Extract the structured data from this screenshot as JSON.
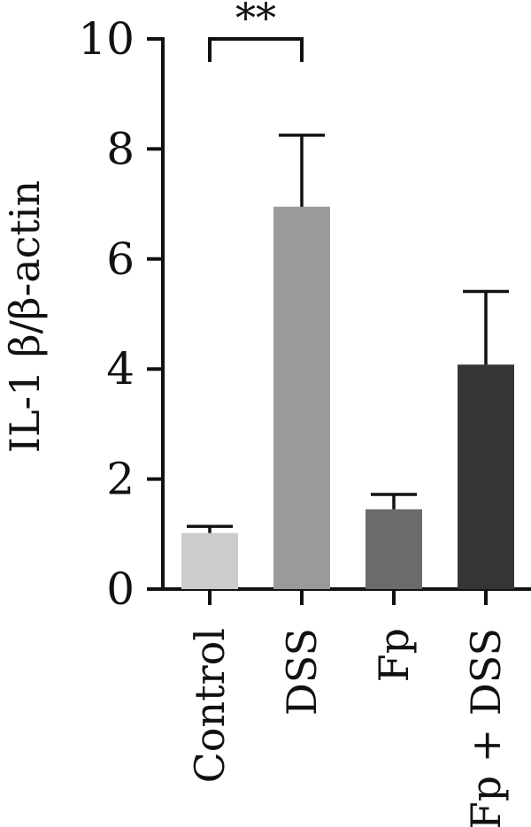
{
  "chart_data": {
    "type": "bar",
    "title": "",
    "xlabel": "",
    "ylabel": "IL-1 β/β-actin",
    "ylim": [
      0,
      10
    ],
    "yticks": [
      0,
      2,
      4,
      6,
      8,
      10
    ],
    "categories": [
      "Control",
      "DSS",
      "Fp",
      "Fp + DSS"
    ],
    "values": [
      1.02,
      6.95,
      1.45,
      4.08
    ],
    "errors": [
      0.12,
      1.3,
      0.27,
      1.33
    ],
    "colors": [
      "#cccccc",
      "#9a9a9a",
      "#6b6b6b",
      "#353535"
    ],
    "significance": [
      {
        "from": "Control",
        "to": "DSS",
        "label": "**"
      }
    ],
    "grid": false,
    "legend": "none"
  }
}
